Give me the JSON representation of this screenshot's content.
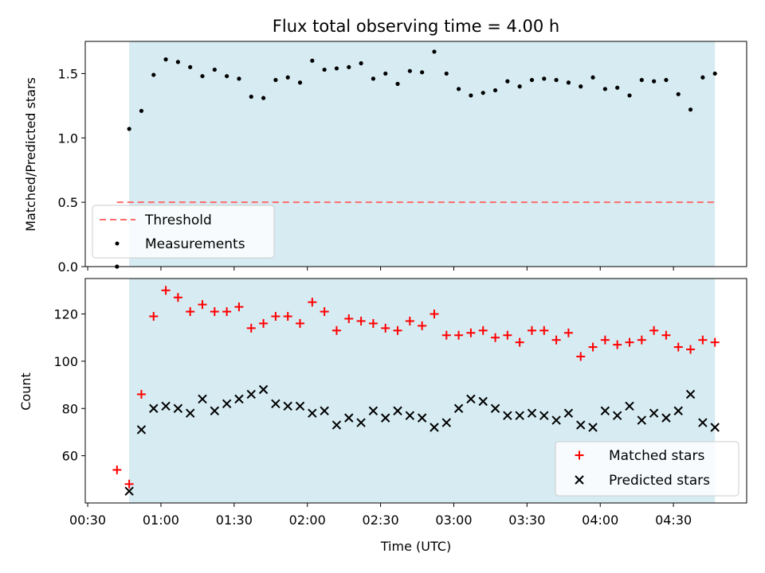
{
  "colors": {
    "observing_window": "#add8e6",
    "threshold": "#ff6b6b",
    "measurements": "#000000",
    "matched": "#ff0000",
    "predicted": "#000000"
  },
  "chart_data": [
    {
      "type": "scatter",
      "panel": "top",
      "title": "Flux total observing time = 4.00 h",
      "ylabel": "Matched/Predicted stars",
      "xlabel": "",
      "x_axis": "time",
      "xlim": [
        "00:29",
        "05:00"
      ],
      "ylim": [
        0,
        1.75
      ],
      "yticks": [
        0.0,
        0.5,
        1.0,
        1.5
      ],
      "yticklabels": [
        "0.0",
        "0.5",
        "1.0",
        "1.5"
      ],
      "observing_window": [
        "00:47",
        "04:47"
      ],
      "threshold": {
        "name": "Threshold",
        "value": 0.5,
        "x": [
          "00:42",
          "04:47"
        ],
        "style": "dashed"
      },
      "legend": {
        "placement": "lower-left",
        "entries": [
          "Threshold",
          "Measurements"
        ]
      },
      "series": [
        {
          "name": "Measurements",
          "marker": "dot",
          "x": [
            "00:42",
            "00:47",
            "00:52",
            "00:57",
            "01:02",
            "01:07",
            "01:12",
            "01:17",
            "01:22",
            "01:27",
            "01:32",
            "01:37",
            "01:42",
            "01:47",
            "01:52",
            "01:57",
            "02:02",
            "02:07",
            "02:12",
            "02:17",
            "02:22",
            "02:27",
            "02:32",
            "02:37",
            "02:42",
            "02:47",
            "02:52",
            "02:57",
            "03:02",
            "03:07",
            "03:12",
            "03:17",
            "03:22",
            "03:27",
            "03:32",
            "03:37",
            "03:42",
            "03:47",
            "03:52",
            "03:57",
            "04:02",
            "04:07",
            "04:12",
            "04:17",
            "04:22",
            "04:27",
            "04:32",
            "04:37",
            "04:42",
            "04:47"
          ],
          "y": [
            0.0,
            1.07,
            1.21,
            1.49,
            1.61,
            1.59,
            1.55,
            1.48,
            1.53,
            1.48,
            1.46,
            1.32,
            1.31,
            1.45,
            1.47,
            1.43,
            1.6,
            1.53,
            1.54,
            1.55,
            1.58,
            1.46,
            1.5,
            1.42,
            1.52,
            1.51,
            1.67,
            1.5,
            1.38,
            1.33,
            1.35,
            1.37,
            1.44,
            1.4,
            1.45,
            1.46,
            1.45,
            1.43,
            1.4,
            1.47,
            1.38,
            1.39,
            1.33,
            1.45,
            1.44,
            1.45,
            1.34,
            1.22,
            1.47,
            1.5
          ]
        }
      ]
    },
    {
      "type": "scatter",
      "panel": "bottom",
      "title": "",
      "ylabel": "Count",
      "xlabel": "Time (UTC)",
      "x_axis": "time",
      "xlim": [
        "00:29",
        "05:00"
      ],
      "ylim": [
        40,
        135
      ],
      "yticks": [
        60,
        80,
        100,
        120
      ],
      "yticklabels": [
        "60",
        "80",
        "100",
        "120"
      ],
      "xticks": [
        "00:30",
        "01:00",
        "01:30",
        "02:00",
        "02:30",
        "03:00",
        "03:30",
        "04:00",
        "04:30"
      ],
      "xticklabels": [
        "00:30",
        "01:00",
        "01:30",
        "02:00",
        "02:30",
        "03:00",
        "03:30",
        "04:00",
        "04:30"
      ],
      "observing_window": [
        "00:47",
        "04:47"
      ],
      "legend": {
        "placement": "lower-right",
        "entries": [
          "Matched stars",
          "Predicted stars"
        ]
      },
      "series": [
        {
          "name": "Matched stars",
          "marker": "plus",
          "x": [
            "00:42",
            "00:47",
            "00:52",
            "00:57",
            "01:02",
            "01:07",
            "01:12",
            "01:17",
            "01:22",
            "01:27",
            "01:32",
            "01:37",
            "01:42",
            "01:47",
            "01:52",
            "01:57",
            "02:02",
            "02:07",
            "02:12",
            "02:17",
            "02:22",
            "02:27",
            "02:32",
            "02:37",
            "02:42",
            "02:47",
            "02:52",
            "02:57",
            "03:02",
            "03:07",
            "03:12",
            "03:17",
            "03:22",
            "03:27",
            "03:32",
            "03:37",
            "03:42",
            "03:47",
            "03:52",
            "03:57",
            "04:02",
            "04:07",
            "04:12",
            "04:17",
            "04:22",
            "04:27",
            "04:32",
            "04:37",
            "04:42",
            "04:47"
          ],
          "y": [
            54,
            48,
            86,
            119,
            130,
            127,
            121,
            124,
            121,
            121,
            123,
            114,
            116,
            119,
            119,
            116,
            125,
            121,
            113,
            118,
            117,
            116,
            114,
            113,
            117,
            115,
            120,
            111,
            111,
            112,
            113,
            110,
            111,
            108,
            113,
            113,
            109,
            112,
            102,
            106,
            109,
            107,
            108,
            109,
            113,
            111,
            106,
            105,
            109,
            108
          ]
        },
        {
          "name": "Predicted stars",
          "marker": "x",
          "x": [
            "00:47",
            "00:52",
            "00:57",
            "01:02",
            "01:07",
            "01:12",
            "01:17",
            "01:22",
            "01:27",
            "01:32",
            "01:37",
            "01:42",
            "01:47",
            "01:52",
            "01:57",
            "02:02",
            "02:07",
            "02:12",
            "02:17",
            "02:22",
            "02:27",
            "02:32",
            "02:37",
            "02:42",
            "02:47",
            "02:52",
            "02:57",
            "03:02",
            "03:07",
            "03:12",
            "03:17",
            "03:22",
            "03:27",
            "03:32",
            "03:37",
            "03:42",
            "03:47",
            "03:52",
            "03:57",
            "04:02",
            "04:07",
            "04:12",
            "04:17",
            "04:22",
            "04:27",
            "04:32",
            "04:37",
            "04:42",
            "04:47"
          ],
          "y": [
            45,
            71,
            80,
            81,
            80,
            78,
            84,
            79,
            82,
            84,
            86,
            88,
            82,
            81,
            81,
            78,
            79,
            73,
            76,
            74,
            79,
            76,
            79,
            77,
            76,
            72,
            74,
            80,
            84,
            83,
            80,
            77,
            77,
            78,
            77,
            75,
            78,
            73,
            72,
            79,
            77,
            81,
            75,
            78,
            76,
            79,
            86,
            74,
            72
          ]
        }
      ]
    }
  ]
}
